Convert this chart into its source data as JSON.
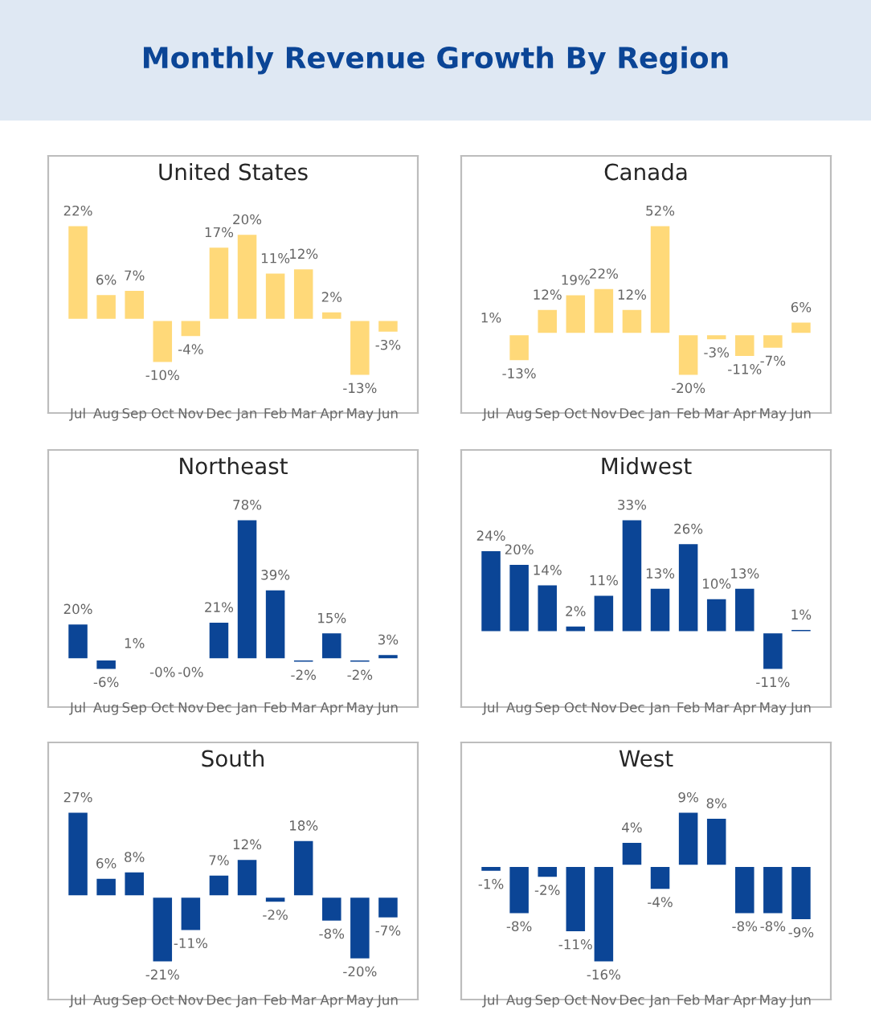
{
  "chart_data": [
    {
      "type": "other",
      "title": "Monthly Revenue Growth By Region"
    },
    {
      "type": "bar",
      "title": "United States",
      "categories": [
        "Jul",
        "Aug",
        "Sep",
        "Oct",
        "Nov",
        "Dec",
        "Jan",
        "Feb",
        "Mar",
        "Apr",
        "May",
        "Jun"
      ],
      "color": "#ffd979",
      "values": [
        22,
        6,
        7,
        -10,
        -4,
        17,
        20,
        11,
        12,
        2,
        -13,
        -3
      ],
      "value_labels": [
        "22%",
        "6%",
        "7%",
        "-10%",
        "-4%",
        "17%",
        "20%",
        "11%",
        "12%",
        "2%",
        "-13%",
        "-3%"
      ]
    },
    {
      "type": "bar",
      "title": "Canada",
      "categories": [
        "Jul",
        "Aug",
        "Sep",
        "Oct",
        "Nov",
        "Dec",
        "Jan",
        "Feb",
        "Mar",
        "Apr",
        "May",
        "Jun"
      ],
      "color": "#ffd979",
      "values": [
        1,
        -13,
        12,
        19,
        22,
        12,
        52,
        -20,
        -3,
        -11,
        -7,
        6
      ],
      "value_labels": [
        "1%",
        "-13%",
        "12%",
        "19%",
        "22%",
        "12%",
        "52%",
        "-20%",
        "-3%",
        "-11%",
        "-7%",
        "6%"
      ]
    },
    {
      "type": "bar",
      "title": "Northeast",
      "categories": [
        "Jul",
        "Aug",
        "Sep",
        "Oct",
        "Nov",
        "Dec",
        "Jan",
        "Feb",
        "Mar",
        "Apr",
        "May",
        "Jun"
      ],
      "color": "#0b4596",
      "values": [
        20,
        -6,
        1,
        -0.4,
        -0.4,
        21,
        78,
        39,
        -2,
        15,
        -2,
        3
      ],
      "value_labels": [
        "20%",
        "-6%",
        "1%",
        "-0%",
        "-0%",
        "21%",
        "78%",
        "39%",
        "-2%",
        "15%",
        "-2%",
        "3%"
      ]
    },
    {
      "type": "bar",
      "title": "Midwest",
      "categories": [
        "Jul",
        "Aug",
        "Sep",
        "Oct",
        "Nov",
        "Dec",
        "Jan",
        "Feb",
        "Mar",
        "Apr",
        "May",
        "Jun"
      ],
      "color": "#0b4596",
      "values": [
        24,
        20,
        14,
        2,
        11,
        33,
        13,
        26,
        10,
        13,
        -11,
        1
      ],
      "value_labels": [
        "24%",
        "20%",
        "14%",
        "2%",
        "11%",
        "33%",
        "13%",
        "26%",
        "10%",
        "13%",
        "-11%",
        "1%"
      ]
    },
    {
      "type": "bar",
      "title": "South",
      "categories": [
        "Jul",
        "Aug",
        "Sep",
        "Oct",
        "Nov",
        "Dec",
        "Jan",
        "Feb",
        "Mar",
        "Apr",
        "May",
        "Jun"
      ],
      "color": "#0b4596",
      "values": [
        27,
        6,
        8,
        -21,
        -11,
        7,
        12,
        -2,
        18,
        -8,
        -20,
        -7
      ],
      "value_labels": [
        "27%",
        "6%",
        "8%",
        "-21%",
        "-11%",
        "7%",
        "12%",
        "-2%",
        "18%",
        "-8%",
        "-20%",
        "-7%"
      ]
    },
    {
      "type": "bar",
      "title": "West",
      "categories": [
        "Jul",
        "Aug",
        "Sep",
        "Oct",
        "Nov",
        "Dec",
        "Jan",
        "Feb",
        "Mar",
        "Apr",
        "May",
        "Jun"
      ],
      "color": "#0b4596",
      "values": [
        -1,
        -8,
        -2,
        -11,
        -16,
        4,
        -4,
        9,
        8,
        -8,
        -8,
        -9
      ],
      "value_labels": [
        "-1%",
        "-8%",
        "-2%",
        "-11%",
        "-16%",
        "4%",
        "-4%",
        "9%",
        "8%",
        "-8%",
        "-8%",
        "-9%"
      ]
    }
  ]
}
